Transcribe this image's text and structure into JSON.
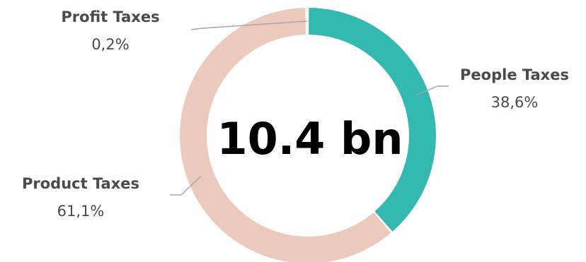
{
  "chart_data": {
    "type": "pie",
    "style": "donut",
    "center_label": "10.4 bn",
    "slices": [
      {
        "label": "People Taxes",
        "value": 38.6,
        "value_label": "38,6%",
        "color": "#33b9b0"
      },
      {
        "label": "Product Taxes",
        "value": 61.1,
        "value_label": "61,1%",
        "color": "#ebcabd"
      },
      {
        "label": "Profit Taxes",
        "value": 0.2,
        "value_label": "0,2%",
        "color": "#d3d3d3"
      }
    ],
    "legend": "none"
  }
}
